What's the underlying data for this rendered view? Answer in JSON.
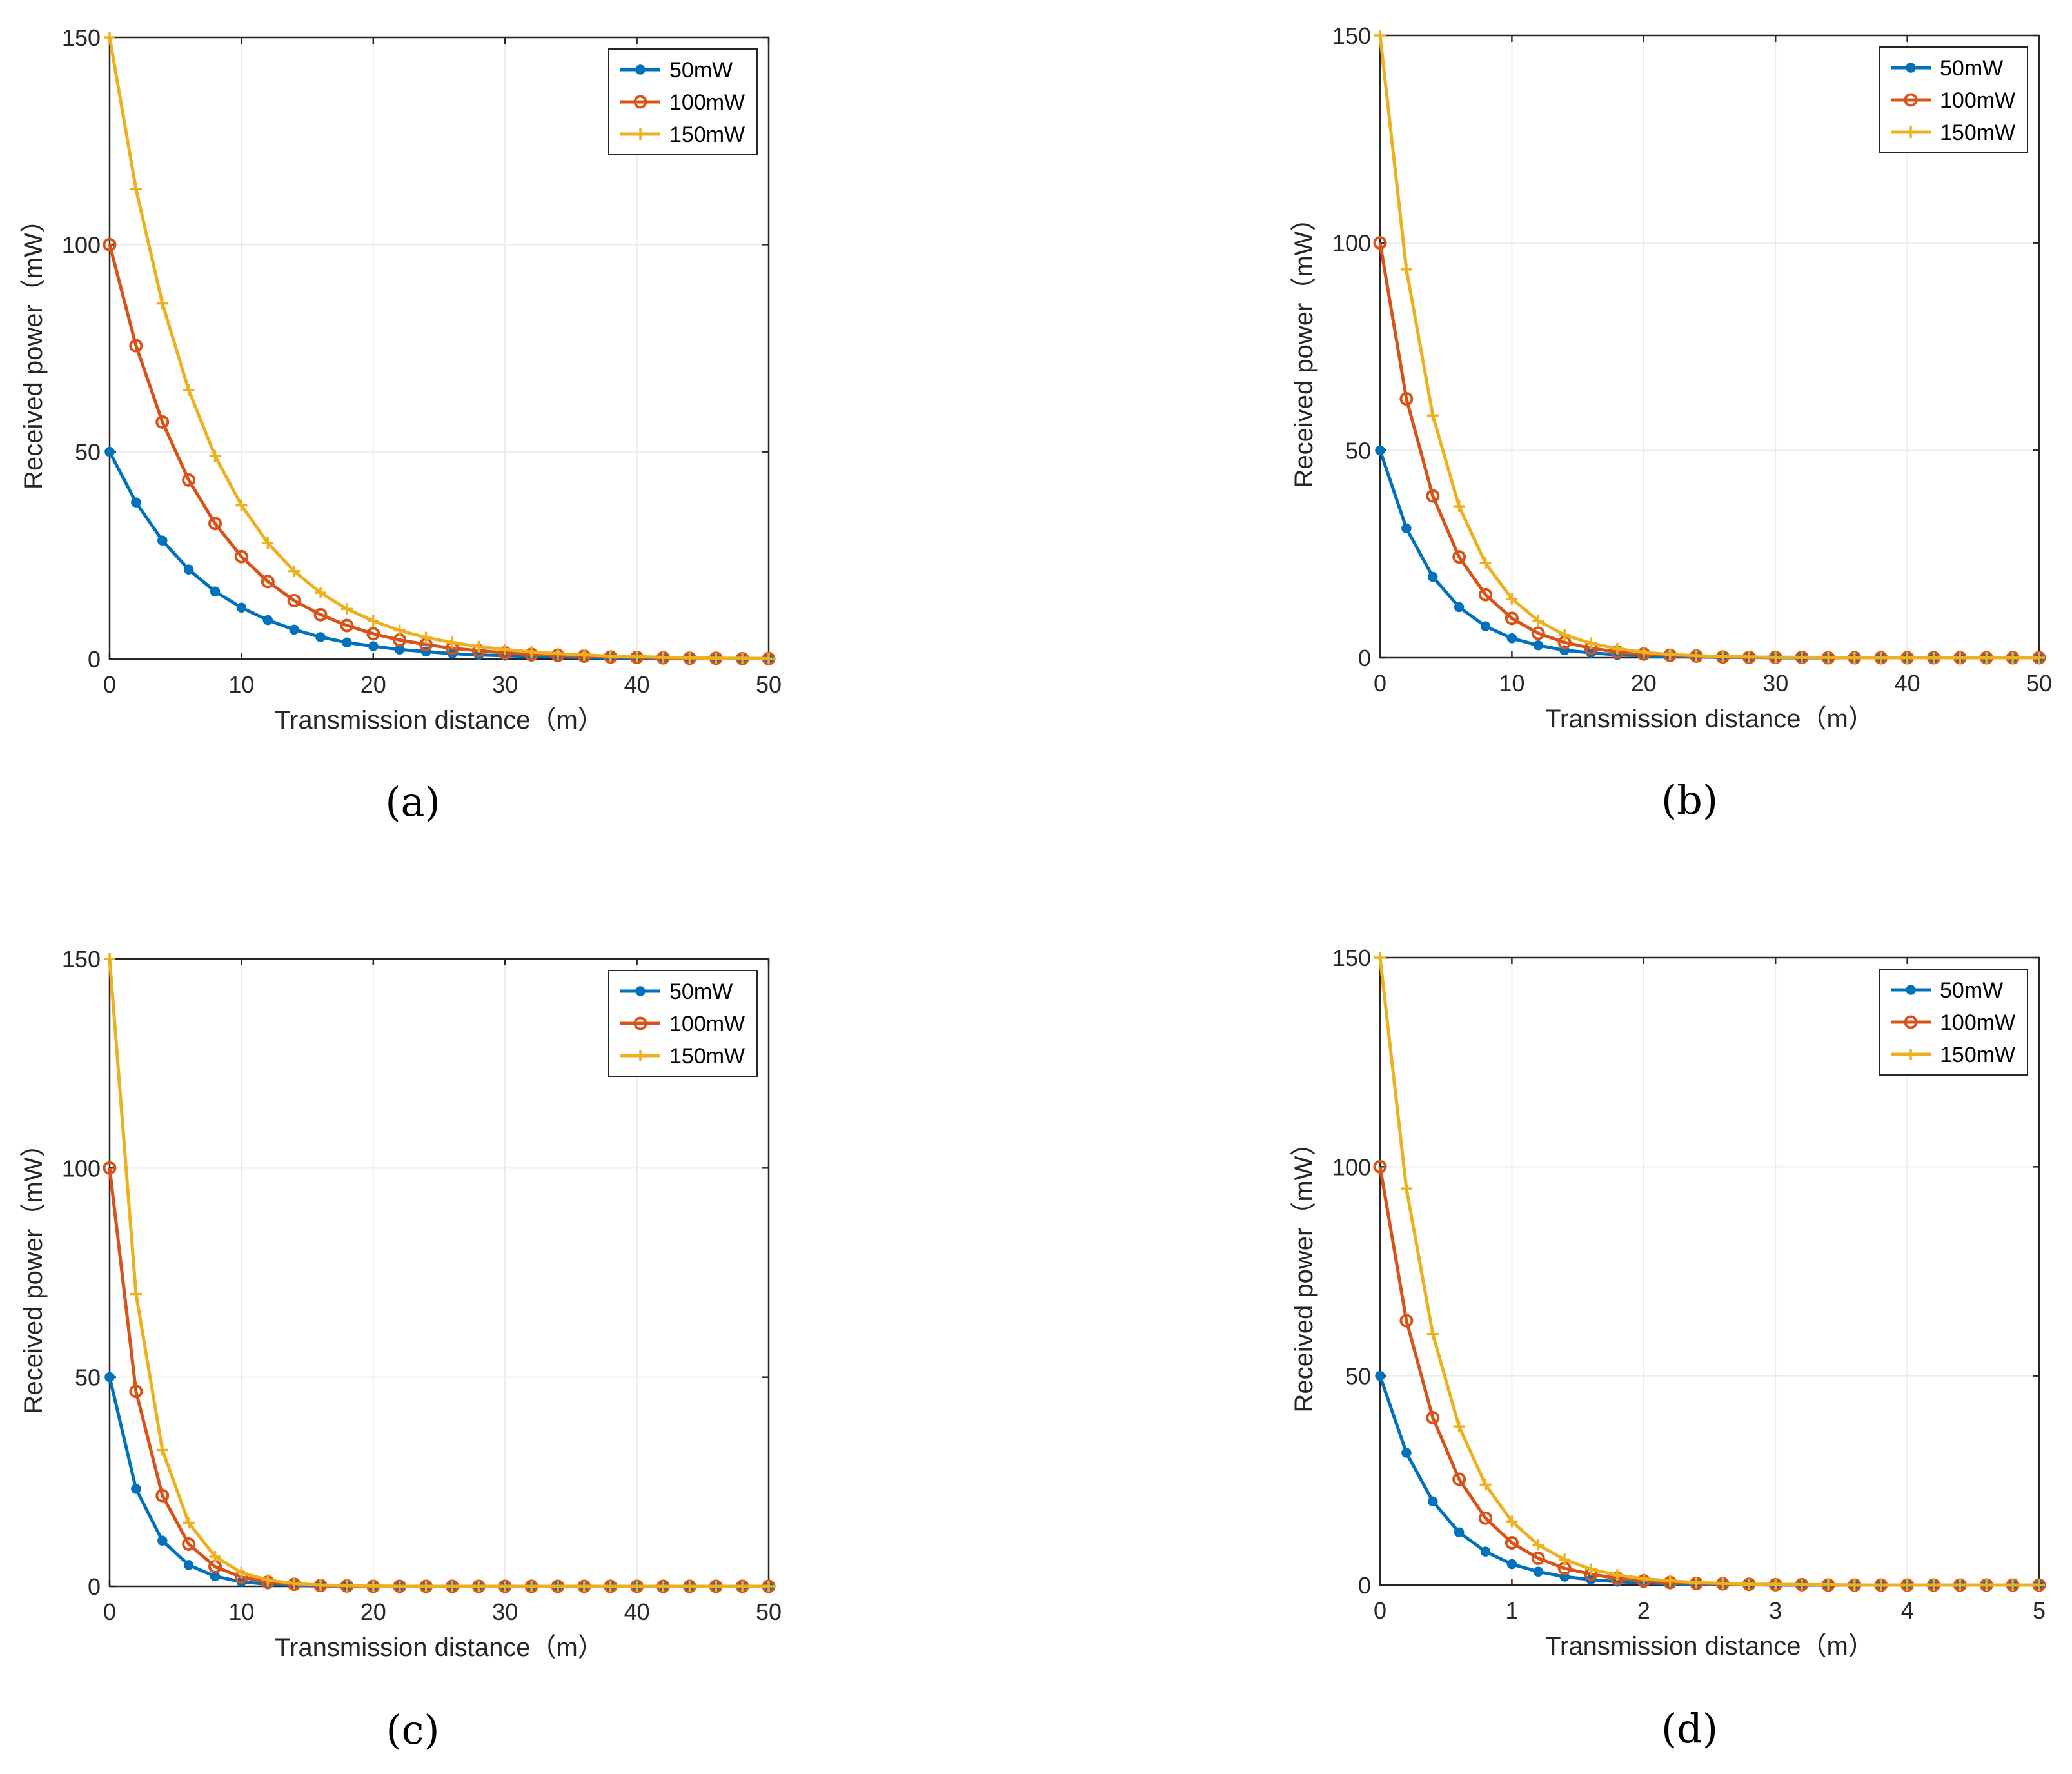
{
  "colors": {
    "series": [
      "#0072BD",
      "#D95319",
      "#EDB120"
    ],
    "axis": "#262626",
    "grid": "#EBEBEB"
  },
  "chart_data": [
    {
      "type": "line",
      "caption": "(a)",
      "title": "",
      "xlabel": "Transmission distance（m）",
      "ylabel": "Received power（mW）",
      "xlim": [
        0,
        50
      ],
      "ylim": [
        0,
        150
      ],
      "xticks": [
        0,
        10,
        20,
        30,
        40,
        50
      ],
      "yticks": [
        0,
        50,
        100,
        150
      ],
      "grid": true,
      "legend_position": "top-right",
      "x": [
        0,
        2,
        4,
        6,
        8,
        10,
        12,
        14,
        16,
        18,
        20,
        22,
        24,
        26,
        28,
        30,
        32,
        34,
        36,
        38,
        40,
        42,
        44,
        46,
        48,
        50
      ],
      "series": [
        {
          "name": "50mW",
          "marker": "dot",
          "values": [
            50,
            37.8,
            28.6,
            21.6,
            16.3,
            12.4,
            9.4,
            7.1,
            5.3,
            4.0,
            3.1,
            2.3,
            1.8,
            1.3,
            1.0,
            0.8,
            0.6,
            0.5,
            0.3,
            0.3,
            0.2,
            0.2,
            0.1,
            0.1,
            0.1,
            0.1
          ]
        },
        {
          "name": "100mW",
          "marker": "circle",
          "values": [
            100,
            75.6,
            57.2,
            43.2,
            32.7,
            24.7,
            18.7,
            14.1,
            10.7,
            8.1,
            6.1,
            4.6,
            3.5,
            2.6,
            2.0,
            1.5,
            1.1,
            0.9,
            0.7,
            0.5,
            0.4,
            0.3,
            0.2,
            0.2,
            0.1,
            0.1
          ]
        },
        {
          "name": "150mW",
          "marker": "plus",
          "values": [
            150,
            113.4,
            85.8,
            64.9,
            49.0,
            37.1,
            28.0,
            21.2,
            16.0,
            12.1,
            9.2,
            6.9,
            5.2,
            4.0,
            3.0,
            2.3,
            1.7,
            1.3,
            1.0,
            0.7,
            0.6,
            0.4,
            0.3,
            0.2,
            0.2,
            0.1
          ]
        }
      ]
    },
    {
      "type": "line",
      "caption": "(b)",
      "title": "",
      "xlabel": "Transmission distance（m）",
      "ylabel": "Received power（mW）",
      "xlim": [
        0,
        50
      ],
      "ylim": [
        0,
        150
      ],
      "xticks": [
        0,
        10,
        20,
        30,
        40,
        50
      ],
      "yticks": [
        0,
        50,
        100,
        150
      ],
      "grid": true,
      "legend_position": "top-right",
      "x": [
        0,
        2,
        4,
        6,
        8,
        10,
        12,
        14,
        16,
        18,
        20,
        22,
        24,
        26,
        28,
        30,
        32,
        34,
        36,
        38,
        40,
        42,
        44,
        46,
        48,
        50
      ],
      "series": [
        {
          "name": "50mW",
          "marker": "dot",
          "values": [
            50,
            31.2,
            19.5,
            12.2,
            7.6,
            4.7,
            3.0,
            1.8,
            1.2,
            0.7,
            0.5,
            0.3,
            0.2,
            0.1,
            0.1,
            0,
            0,
            0,
            0,
            0,
            0,
            0,
            0,
            0,
            0,
            0
          ]
        },
        {
          "name": "100mW",
          "marker": "circle",
          "values": [
            100,
            62.4,
            39.0,
            24.3,
            15.2,
            9.5,
            5.9,
            3.7,
            2.3,
            1.4,
            0.9,
            0.6,
            0.4,
            0.2,
            0.1,
            0.1,
            0.1,
            0,
            0,
            0,
            0,
            0,
            0,
            0,
            0,
            0
          ]
        },
        {
          "name": "150mW",
          "marker": "plus",
          "values": [
            150,
            93.6,
            58.4,
            36.5,
            22.8,
            14.2,
            8.9,
            5.5,
            3.5,
            2.2,
            1.3,
            0.8,
            0.5,
            0.3,
            0.2,
            0.1,
            0.1,
            0.1,
            0,
            0,
            0,
            0,
            0,
            0,
            0,
            0
          ]
        }
      ]
    },
    {
      "type": "line",
      "caption": "(c)",
      "title": "",
      "xlabel": "Transmission distance（m）",
      "ylabel": "Received power（mW）",
      "xlim": [
        0,
        50
      ],
      "ylim": [
        0,
        150
      ],
      "xticks": [
        0,
        10,
        20,
        30,
        40,
        50
      ],
      "yticks": [
        0,
        50,
        100,
        150
      ],
      "grid": true,
      "legend_position": "top-right",
      "x": [
        0,
        2,
        4,
        6,
        8,
        10,
        12,
        14,
        16,
        18,
        20,
        22,
        24,
        26,
        28,
        30,
        32,
        34,
        36,
        38,
        40,
        42,
        44,
        46,
        48,
        50
      ],
      "series": [
        {
          "name": "50mW",
          "marker": "dot",
          "values": [
            50,
            23.3,
            10.9,
            5.1,
            2.4,
            1.1,
            0.5,
            0.2,
            0.1,
            0.1,
            0,
            0,
            0,
            0,
            0,
            0,
            0,
            0,
            0,
            0,
            0,
            0,
            0,
            0,
            0,
            0
          ]
        },
        {
          "name": "100mW",
          "marker": "circle",
          "values": [
            100,
            46.6,
            21.7,
            10.1,
            4.7,
            2.2,
            1.0,
            0.5,
            0.2,
            0.1,
            0,
            0,
            0,
            0,
            0,
            0,
            0,
            0,
            0,
            0,
            0,
            0,
            0,
            0,
            0,
            0
          ]
        },
        {
          "name": "150mW",
          "marker": "plus",
          "values": [
            150,
            69.9,
            32.6,
            15.2,
            7.1,
            3.3,
            1.5,
            0.7,
            0.3,
            0.2,
            0.1,
            0,
            0,
            0,
            0,
            0,
            0,
            0,
            0,
            0,
            0,
            0,
            0,
            0,
            0,
            0
          ]
        }
      ]
    },
    {
      "type": "line",
      "caption": "(d)",
      "title": "",
      "xlabel": "Transmission distance（m）",
      "ylabel": "Received power（mW）",
      "xlim": [
        0,
        5
      ],
      "ylim": [
        0,
        150
      ],
      "xticks": [
        0,
        1,
        2,
        3,
        4,
        5
      ],
      "yticks": [
        0,
        50,
        100,
        150
      ],
      "grid": true,
      "legend_position": "top-right",
      "x": [
        0,
        0.2,
        0.4,
        0.6,
        0.8,
        1.0,
        1.2,
        1.4,
        1.6,
        1.8,
        2.0,
        2.2,
        2.4,
        2.6,
        2.8,
        3.0,
        3.2,
        3.4,
        3.6,
        3.8,
        4.0,
        4.2,
        4.4,
        4.6,
        4.8,
        5.0
      ],
      "series": [
        {
          "name": "50mW",
          "marker": "dot",
          "values": [
            50,
            31.6,
            20.0,
            12.6,
            8.0,
            5.0,
            3.2,
            2.0,
            1.3,
            0.8,
            0.5,
            0.3,
            0.2,
            0.1,
            0.1,
            0,
            0,
            0,
            0,
            0,
            0,
            0,
            0,
            0,
            0,
            0
          ]
        },
        {
          "name": "100mW",
          "marker": "circle",
          "values": [
            100,
            63.2,
            40.0,
            25.3,
            16.0,
            10.1,
            6.4,
            4.0,
            2.6,
            1.6,
            1.0,
            0.6,
            0.4,
            0.3,
            0.2,
            0.1,
            0.1,
            0,
            0,
            0,
            0,
            0,
            0,
            0,
            0,
            0
          ]
        },
        {
          "name": "150mW",
          "marker": "plus",
          "values": [
            150,
            94.8,
            60.0,
            37.9,
            24.0,
            15.2,
            9.6,
            6.1,
            3.8,
            2.4,
            1.5,
            1.0,
            0.6,
            0.4,
            0.2,
            0.2,
            0.1,
            0.1,
            0,
            0,
            0,
            0,
            0,
            0,
            0,
            0
          ]
        }
      ]
    }
  ]
}
